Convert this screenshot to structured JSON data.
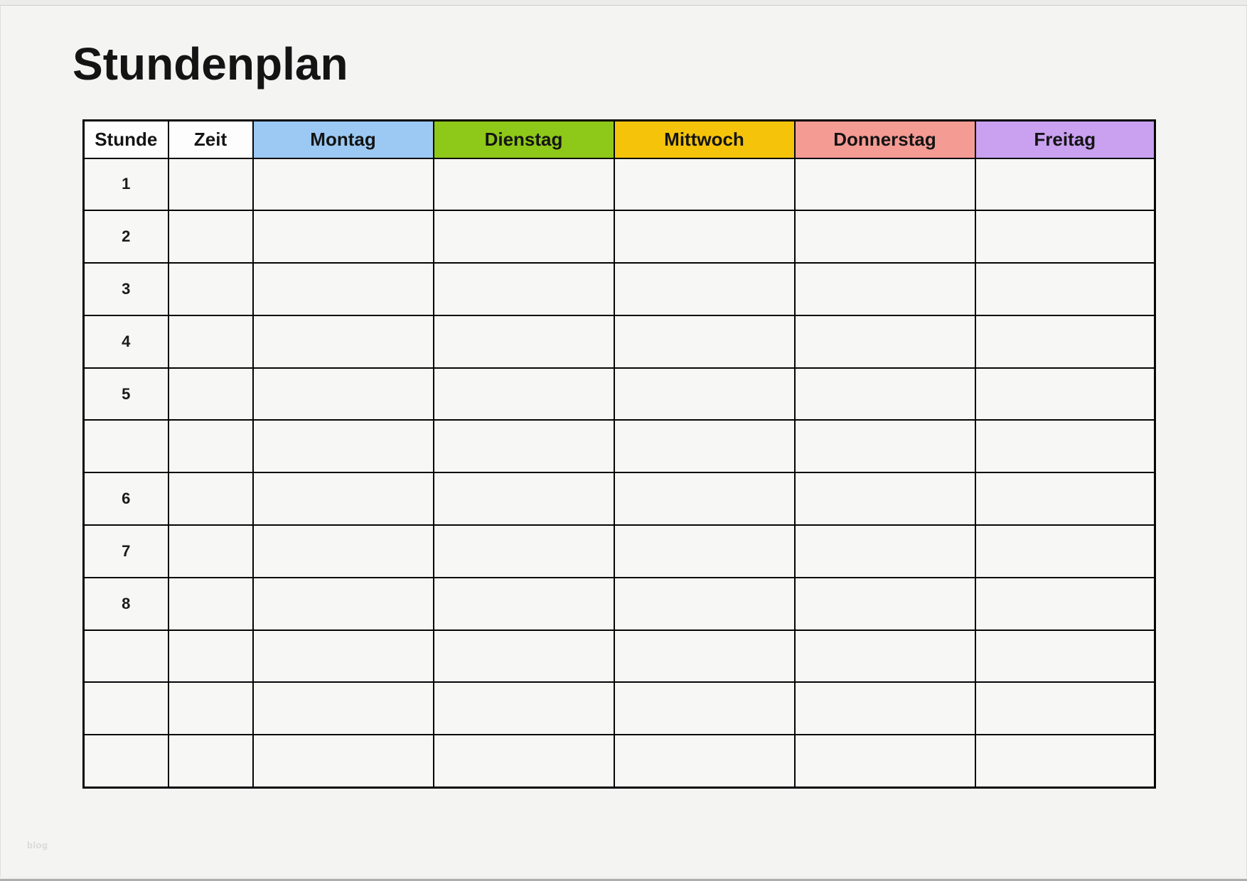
{
  "page": {
    "title": "Stundenplan",
    "watermark": "blog",
    "background_color": "#f4f4f3"
  },
  "timetable": {
    "header": [
      {
        "label": "Stunde",
        "bg": "#fdfdfd"
      },
      {
        "label": "Zeit",
        "bg": "#fdfdfd"
      },
      {
        "label": "Montag",
        "bg": "#9bc9f3"
      },
      {
        "label": "Dienstag",
        "bg": "#8ec818"
      },
      {
        "label": "Mittwoch",
        "bg": "#f5c40a"
      },
      {
        "label": "Donnerstag",
        "bg": "#f49b94"
      },
      {
        "label": "Freitag",
        "bg": "#c9a1f0"
      }
    ],
    "rows": [
      {
        "stunde": "1",
        "zeit": "",
        "montag": "",
        "dienstag": "",
        "mittwoch": "",
        "donnerstag": "",
        "freitag": ""
      },
      {
        "stunde": "2",
        "zeit": "",
        "montag": "",
        "dienstag": "",
        "mittwoch": "",
        "donnerstag": "",
        "freitag": ""
      },
      {
        "stunde": "3",
        "zeit": "",
        "montag": "",
        "dienstag": "",
        "mittwoch": "",
        "donnerstag": "",
        "freitag": ""
      },
      {
        "stunde": "4",
        "zeit": "",
        "montag": "",
        "dienstag": "",
        "mittwoch": "",
        "donnerstag": "",
        "freitag": ""
      },
      {
        "stunde": "5",
        "zeit": "",
        "montag": "",
        "dienstag": "",
        "mittwoch": "",
        "donnerstag": "",
        "freitag": ""
      },
      {
        "stunde": "",
        "zeit": "",
        "montag": "",
        "dienstag": "",
        "mittwoch": "",
        "donnerstag": "",
        "freitag": ""
      },
      {
        "stunde": "6",
        "zeit": "",
        "montag": "",
        "dienstag": "",
        "mittwoch": "",
        "donnerstag": "",
        "freitag": ""
      },
      {
        "stunde": "7",
        "zeit": "",
        "montag": "",
        "dienstag": "",
        "mittwoch": "",
        "donnerstag": "",
        "freitag": ""
      },
      {
        "stunde": "8",
        "zeit": "",
        "montag": "",
        "dienstag": "",
        "mittwoch": "",
        "donnerstag": "",
        "freitag": ""
      },
      {
        "stunde": "",
        "zeit": "",
        "montag": "",
        "dienstag": "",
        "mittwoch": "",
        "donnerstag": "",
        "freitag": ""
      },
      {
        "stunde": "",
        "zeit": "",
        "montag": "",
        "dienstag": "",
        "mittwoch": "",
        "donnerstag": "",
        "freitag": ""
      },
      {
        "stunde": "",
        "zeit": "",
        "montag": "",
        "dienstag": "",
        "mittwoch": "",
        "donnerstag": "",
        "freitag": ""
      }
    ]
  }
}
